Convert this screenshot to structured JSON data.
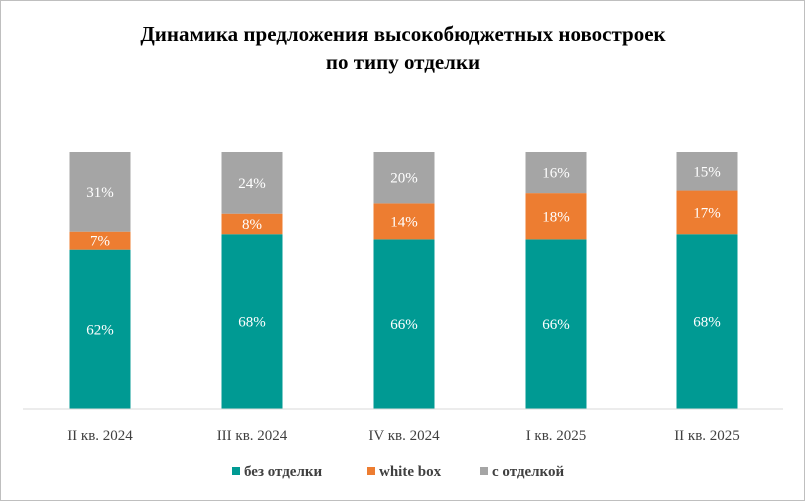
{
  "chart_data": {
    "type": "bar",
    "stacked": true,
    "title": "Динамика предложения высокобюджетных новостроек",
    "subtitle": "по типу отделки",
    "categories": [
      "II кв. 2024",
      "III кв. 2024",
      "IV кв. 2024",
      "I кв. 2025",
      "II кв. 2025"
    ],
    "series": [
      {
        "name": "без отделки",
        "color": "#009a93",
        "values": [
          62,
          68,
          66,
          66,
          68
        ]
      },
      {
        "name": "white box",
        "color": "#ed7d31",
        "values": [
          7,
          8,
          14,
          18,
          17
        ]
      },
      {
        "name": "с отделкой",
        "color": "#a5a5a5",
        "values": [
          31,
          24,
          20,
          16,
          15
        ]
      }
    ],
    "data_label_suffix": "%",
    "ylim": [
      0,
      100
    ],
    "grid": false,
    "legend_position": "bottom"
  }
}
